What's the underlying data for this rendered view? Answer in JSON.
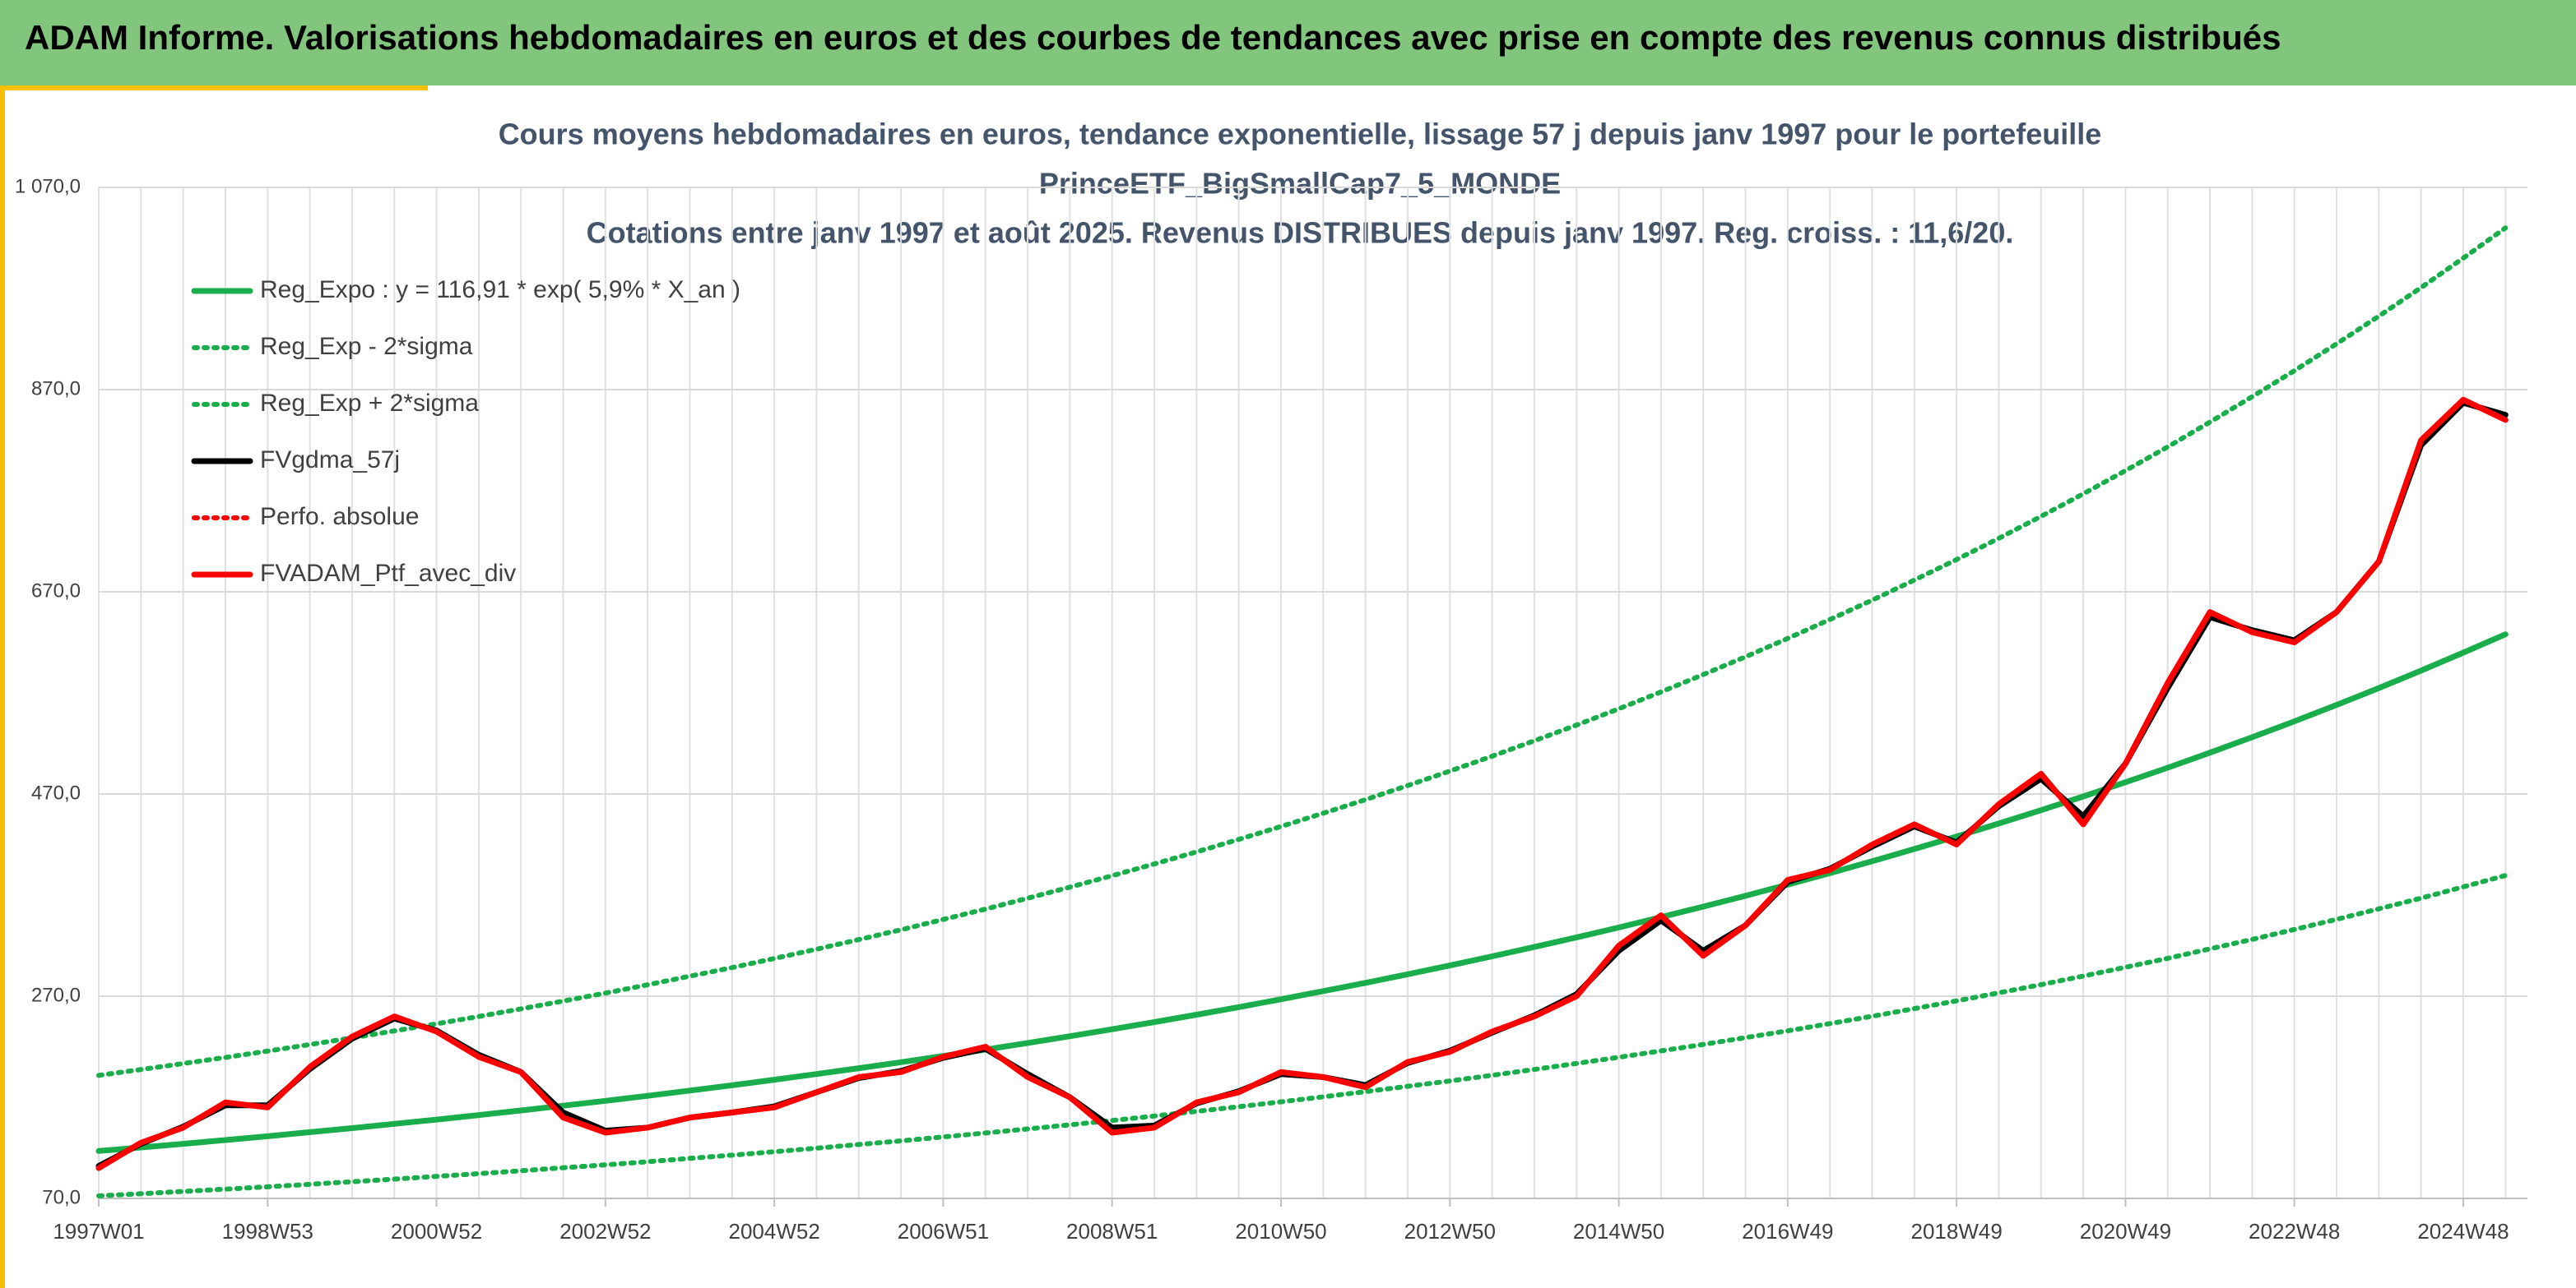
{
  "header": {
    "title": "ADAM Informe. Valorisations hebdomadaires en euros et des courbes de tendances avec prise en compte des revenus connus distribués"
  },
  "chart_data": {
    "type": "line",
    "title": [
      "Cours moyens hebdomadaires en euros, tendance exponentielle, lissage 57 j depuis janv 1997 pour le portefeuille",
      "PrinceETF_BigSmallCap7_5_MONDE",
      "Cotations entre janv 1997 et août 2025. Revenus DISTRIBUES depuis janv 1997. Reg. croiss. : 11,6/20."
    ],
    "categories": [
      "1997W01",
      null,
      null,
      null,
      "1998W53",
      null,
      null,
      null,
      "2000W52",
      null,
      null,
      null,
      "2002W52",
      null,
      null,
      null,
      "2004W52",
      null,
      null,
      null,
      "2006W51",
      null,
      null,
      null,
      "2008W51",
      null,
      null,
      null,
      "2010W50",
      null,
      null,
      null,
      "2012W50",
      null,
      null,
      null,
      "2014W50",
      null,
      null,
      null,
      "2016W49",
      null,
      null,
      null,
      "2018W49",
      null,
      null,
      null,
      "2020W49",
      null,
      null,
      null,
      "2022W48",
      null,
      null,
      null,
      "2024W48",
      null
    ],
    "ylim": [
      70,
      1070
    ],
    "yticks": [
      {
        "value": 70,
        "label": "70,0"
      },
      {
        "value": 270,
        "label": "270,0"
      },
      {
        "value": 470,
        "label": "470,0"
      },
      {
        "value": 670,
        "label": "670,0"
      },
      {
        "value": 870,
        "label": "870,0"
      },
      {
        "value": 1070,
        "label": "1 070,0"
      }
    ],
    "grid": true,
    "legend": "top-left",
    "series": [
      {
        "name": "Reg_Expo : y = 116,91 * exp( 5,9% *  X_an )",
        "color": "#1aad4b",
        "style": "solid",
        "values": [
          116.9,
          120.4,
          124.0,
          127.7,
          131.5,
          135.5,
          139.5,
          143.7,
          148.0,
          152.4,
          157.0,
          161.7,
          166.5,
          171.5,
          176.7,
          181.9,
          187.4,
          193.0,
          198.8,
          204.7,
          210.9,
          217.2,
          223.7,
          230.4,
          237.3,
          244.4,
          251.7,
          259.2,
          267.0,
          275.0,
          283.2,
          291.7,
          300.4,
          309.4,
          318.7,
          328.2,
          338.0,
          348.2,
          358.6,
          369.3,
          380.4,
          391.8,
          403.5,
          415.6,
          428.0,
          440.8,
          454.0,
          467.6,
          481.6,
          496.0,
          510.9,
          526.2,
          541.9,
          558.1,
          574.8,
          592.0,
          609.8,
          628.0
        ]
      },
      {
        "name": "Reg_Exp - 2*sigma",
        "color": "#1aad4b",
        "style": "dotted",
        "values": [
          72.5,
          74.6,
          76.9,
          79.2,
          81.5,
          84.0,
          86.5,
          89.1,
          91.8,
          94.5,
          97.3,
          100.3,
          103.2,
          106.3,
          109.6,
          112.8,
          116.2,
          119.7,
          123.3,
          126.9,
          130.8,
          134.7,
          138.7,
          142.8,
          147.1,
          151.5,
          156.1,
          160.7,
          165.5,
          170.5,
          175.6,
          180.9,
          186.2,
          191.8,
          197.6,
          203.5,
          209.6,
          215.9,
          222.3,
          229.0,
          235.8,
          242.9,
          250.2,
          257.7,
          265.4,
          273.3,
          281.5,
          289.9,
          298.6,
          307.5,
          316.8,
          326.2,
          336.0,
          346.0,
          356.4,
          367.0,
          378.1,
          389.4
        ]
      },
      {
        "name": "Reg_Exp + 2*sigma",
        "color": "#1aad4b",
        "style": "dotted",
        "values": [
          191.7,
          197.5,
          203.4,
          209.4,
          215.7,
          222.2,
          228.8,
          235.7,
          242.7,
          249.9,
          257.5,
          265.2,
          273.1,
          281.3,
          289.8,
          298.3,
          307.3,
          316.5,
          326.0,
          335.7,
          345.9,
          356.2,
          366.9,
          377.9,
          389.2,
          400.8,
          412.8,
          425.1,
          437.9,
          451.0,
          464.4,
          478.4,
          492.7,
          507.4,
          522.7,
          538.2,
          554.3,
          571.0,
          588.1,
          605.7,
          623.9,
          642.6,
          661.7,
          681.6,
          701.9,
          722.9,
          744.6,
          766.9,
          789.8,
          813.4,
          837.9,
          863.0,
          888.7,
          915.3,
          942.7,
          970.9,
          1000.1,
          1029.9
        ]
      },
      {
        "name": "FVgdma_57j",
        "color": "#000000",
        "style": "solid",
        "values": [
          102,
          124,
          141,
          162,
          162,
          198,
          228,
          248,
          236,
          212,
          195,
          155,
          137,
          140,
          150,
          155,
          161,
          175,
          189,
          196,
          209,
          218,
          193,
          170,
          140,
          142,
          164,
          176,
          193,
          190,
          182,
          204,
          216,
          234,
          251,
          272,
          315,
          345,
          315,
          340,
          383,
          396,
          418,
          438,
          422,
          458,
          485,
          448,
          500,
          575,
          645,
          632,
          622,
          650,
          700,
          815,
          857,
          845
        ]
      },
      {
        "name": "Perfo. absolue",
        "color": "#ff0000",
        "style": "dotted",
        "values": [
          100,
          125,
          140,
          165,
          160,
          200,
          230,
          250,
          235,
          210,
          195,
          150,
          135,
          140,
          150,
          155,
          160,
          175,
          190,
          195,
          210,
          220,
          190,
          170,
          135,
          140,
          165,
          175,
          195,
          190,
          180,
          205,
          215,
          235,
          250,
          270,
          320,
          350,
          310,
          340,
          385,
          395,
          420,
          440,
          420,
          460,
          490,
          440,
          500,
          580,
          650,
          630,
          620,
          650,
          700,
          820,
          860,
          840
        ]
      },
      {
        "name": "FVADAM_Ptf_avec_div",
        "color": "#ff0000",
        "style": "solid",
        "values": [
          100,
          125,
          140,
          165,
          160,
          200,
          230,
          250,
          235,
          210,
          195,
          150,
          135,
          140,
          150,
          155,
          160,
          175,
          190,
          195,
          210,
          220,
          190,
          170,
          135,
          140,
          165,
          175,
          195,
          190,
          180,
          205,
          215,
          235,
          250,
          270,
          320,
          350,
          310,
          340,
          385,
          395,
          420,
          440,
          420,
          460,
          490,
          440,
          500,
          580,
          650,
          630,
          620,
          650,
          700,
          820,
          860,
          840
        ]
      }
    ]
  }
}
